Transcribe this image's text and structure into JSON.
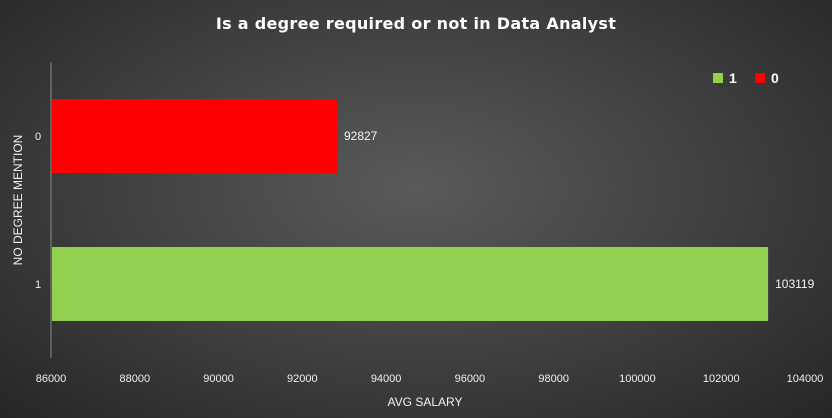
{
  "chart_data": {
    "type": "bar",
    "orientation": "horizontal",
    "title": "Is a degree required or not in Data Analyst",
    "xlabel": "AVG SALARY",
    "ylabel": "NO DEGREE MENTION",
    "categories": [
      "0",
      "1"
    ],
    "values": [
      92827,
      103119
    ],
    "data_labels": [
      "92827",
      "103119"
    ],
    "colors": [
      "#ff0000",
      "#92d050"
    ],
    "xlim": [
      86000,
      104000
    ],
    "x_ticks": [
      "86000",
      "88000",
      "90000",
      "92000",
      "94000",
      "96000",
      "98000",
      "100000",
      "102000",
      "104000"
    ],
    "legend": {
      "position": "top-right",
      "entries": [
        {
          "label": "1",
          "color": "#92d050"
        },
        {
          "label": "0",
          "color": "#ff0000"
        }
      ]
    },
    "grid": false
  }
}
